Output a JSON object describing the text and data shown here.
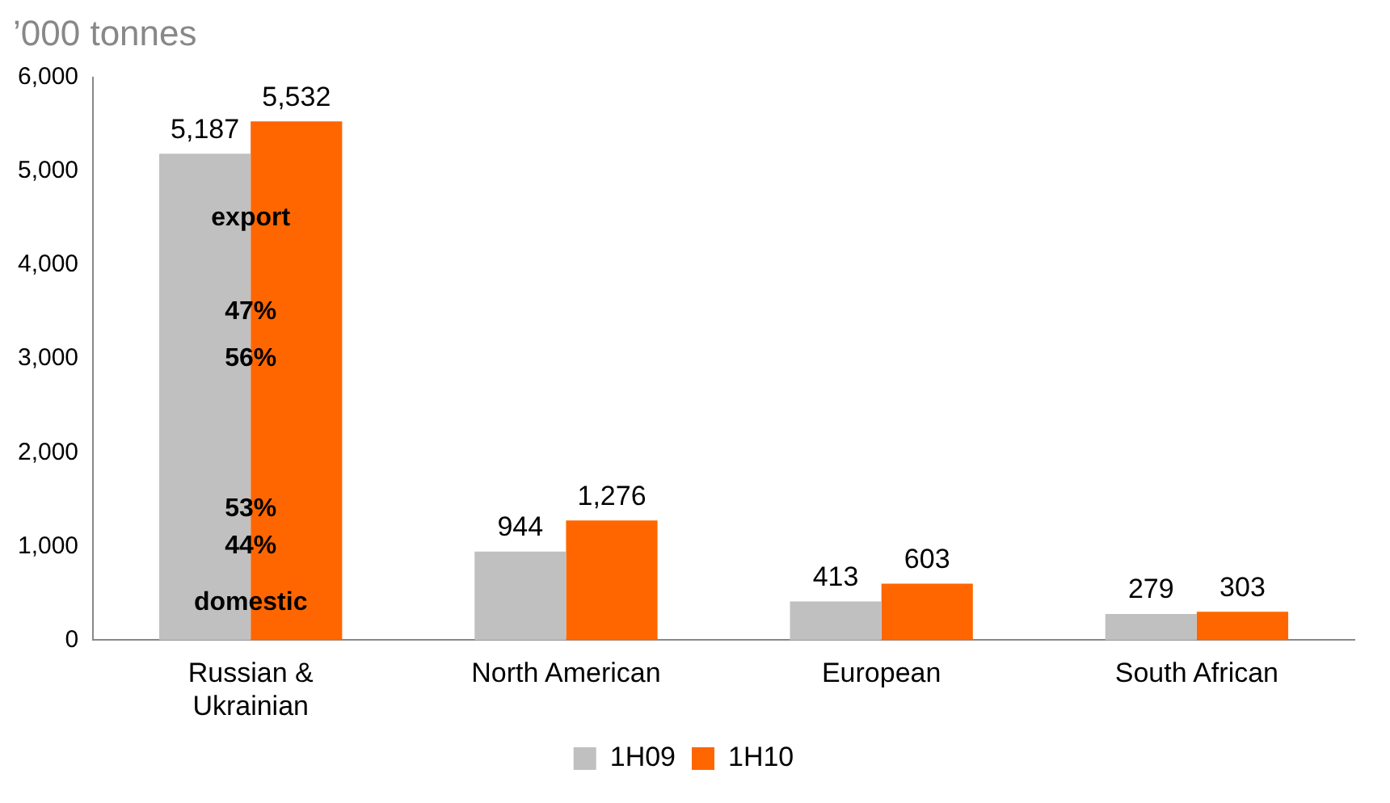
{
  "chart_data": {
    "type": "bar",
    "ylabel": "’000 tonnes",
    "categories": [
      "Russian & Ukrainian",
      "North American",
      "European",
      "South African"
    ],
    "series": [
      {
        "name": "1H09",
        "color": "#c0c0c0",
        "values": [
          5187,
          944,
          413,
          279
        ],
        "value_labels": [
          "5,187",
          "944",
          "413",
          "279"
        ]
      },
      {
        "name": "1H10",
        "color": "#ff6600",
        "values": [
          5532,
          1276,
          603,
          303
        ],
        "value_labels": [
          "5,532",
          "1,276",
          "603",
          "303"
        ]
      }
    ],
    "ylim": [
      0,
      6000
    ],
    "yticks": [
      0,
      {
        "value": 1000,
        "label": "1,000"
      },
      {
        "value": 2000,
        "label": "2,000"
      },
      {
        "value": 3000,
        "label": "3,000"
      },
      {
        "value": 4000,
        "label": "4,000"
      },
      {
        "value": 5000,
        "label": "5,000"
      },
      {
        "value": 6000,
        "label": "6,000"
      }
    ],
    "grid": false,
    "legend": "bottom",
    "annotations": [
      {
        "text": "export",
        "x": "Russian & Ukrainian",
        "y": 4500
      },
      {
        "text": "56%",
        "x": "Russian & Ukrainian",
        "y": 3000
      },
      {
        "text": "47%",
        "x": "Russian & Ukrainian",
        "y": 3500
      },
      {
        "text": "53%",
        "x": "Russian & Ukrainian",
        "y": 1400
      },
      {
        "text": "44%",
        "x": "Russian & Ukrainian",
        "y": 1000
      },
      {
        "text": "domestic",
        "x": "Russian & Ukrainian",
        "y": 400
      }
    ]
  }
}
